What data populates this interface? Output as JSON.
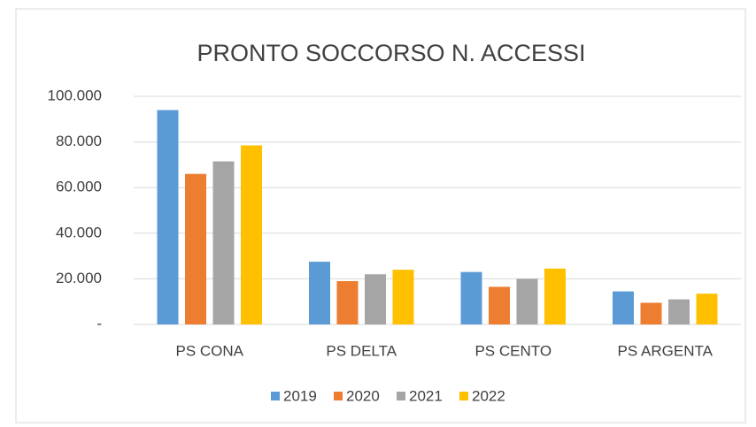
{
  "chart_data": {
    "type": "bar",
    "title": "PRONTO SOCCORSO N. ACCESSI",
    "categories": [
      "PS CONA",
      "PS DELTA",
      "PS CENTO",
      "PS ARGENTA"
    ],
    "series": [
      {
        "name": "2019",
        "color": "#5b9bd5",
        "values": [
          94000,
          27500,
          23000,
          14500
        ]
      },
      {
        "name": "2020",
        "color": "#ed7d31",
        "values": [
          66000,
          19000,
          16500,
          9500
        ]
      },
      {
        "name": "2021",
        "color": "#a5a5a5",
        "values": [
          71500,
          22000,
          20000,
          11000
        ]
      },
      {
        "name": "2022",
        "color": "#ffc000",
        "values": [
          78500,
          24000,
          24500,
          13500
        ]
      }
    ],
    "ylim": [
      0,
      100000
    ],
    "yticks": [
      {
        "value": 0,
        "label": "-"
      },
      {
        "value": 20000,
        "label": "20.000"
      },
      {
        "value": 40000,
        "label": "40.000"
      },
      {
        "value": 60000,
        "label": "60.000"
      },
      {
        "value": 80000,
        "label": "80.000"
      },
      {
        "value": 100000,
        "label": "100.000"
      }
    ],
    "grid": true,
    "legend": "bottom"
  }
}
